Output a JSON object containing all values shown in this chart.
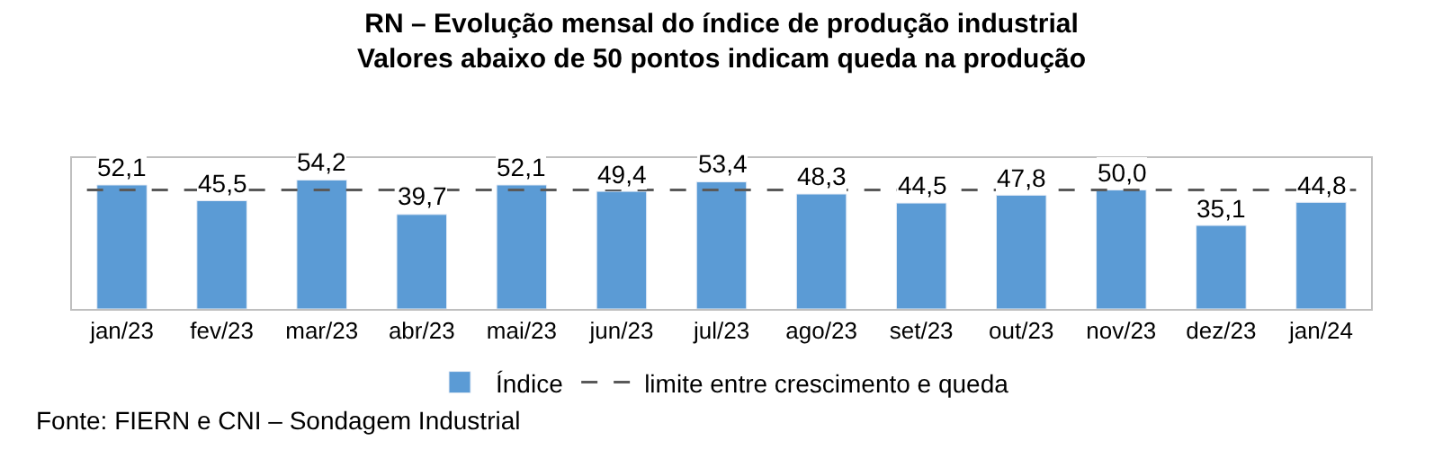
{
  "chart_data": {
    "type": "bar",
    "title": "RN – Evolução mensal do índice de produção industrial",
    "subtitle": "Valores abaixo de 50 pontos indicam queda na produção",
    "categories": [
      "jan/23",
      "fev/23",
      "mar/23",
      "abr/23",
      "mai/23",
      "jun/23",
      "jul/23",
      "ago/23",
      "set/23",
      "out/23",
      "nov/23",
      "dez/23",
      "jan/24"
    ],
    "series": [
      {
        "name": "Índice",
        "color": "#5b9bd5",
        "values": [
          52.1,
          45.5,
          54.2,
          39.7,
          52.1,
          49.4,
          53.4,
          48.3,
          44.5,
          47.8,
          50.0,
          35.1,
          44.8
        ],
        "value_labels": [
          "52,1",
          "45,5",
          "54,2",
          "39,7",
          "52,1",
          "49,4",
          "53,4",
          "48,3",
          "44,5",
          "47,8",
          "50,0",
          "35,1",
          "44,8"
        ]
      }
    ],
    "ref_lines": [
      {
        "axis": "y",
        "value": 50,
        "label": "limite entre crescimento e queda",
        "color": "#595959",
        "line_style": "dashed"
      }
    ],
    "legend": "bottom",
    "annotations": [
      "Fonte: FIERN e CNI – Sondagem Industrial"
    ]
  }
}
